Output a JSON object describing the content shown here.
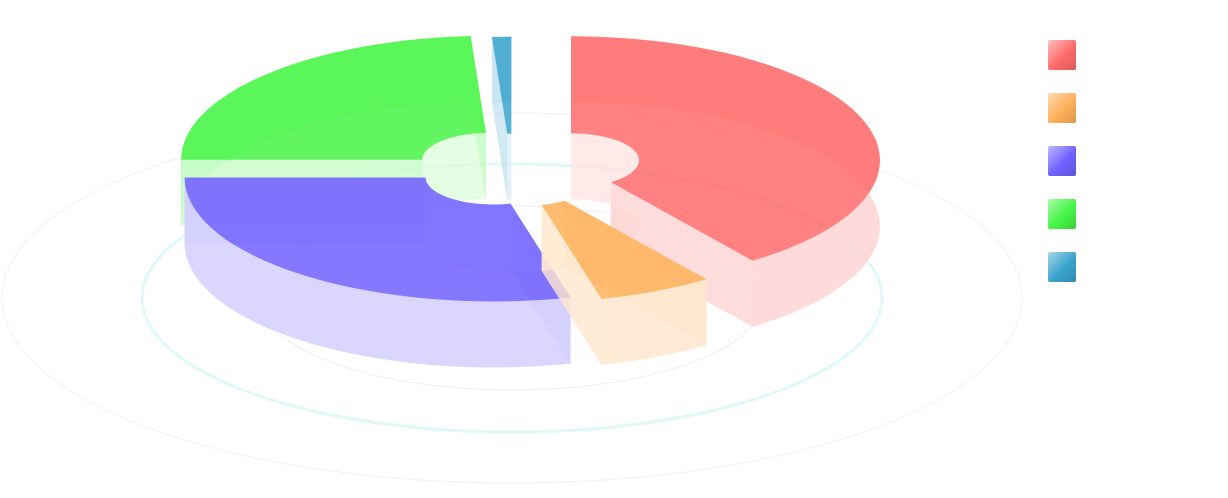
{
  "chart_data": {
    "type": "pie",
    "style": "3d-exploded",
    "slices": [
      {
        "name": "",
        "value": 40,
        "color": "#ff6b6b"
      },
      {
        "name": "",
        "value": 6,
        "color": "#ffb05a"
      },
      {
        "name": "",
        "value": 29,
        "color": "#7060ff"
      },
      {
        "name": "",
        "value": 24,
        "color": "#45f545"
      },
      {
        "name": "",
        "value": 1,
        "color": "#3aa3cc"
      }
    ],
    "legend": "right",
    "labels": "none",
    "background_rings": true
  }
}
